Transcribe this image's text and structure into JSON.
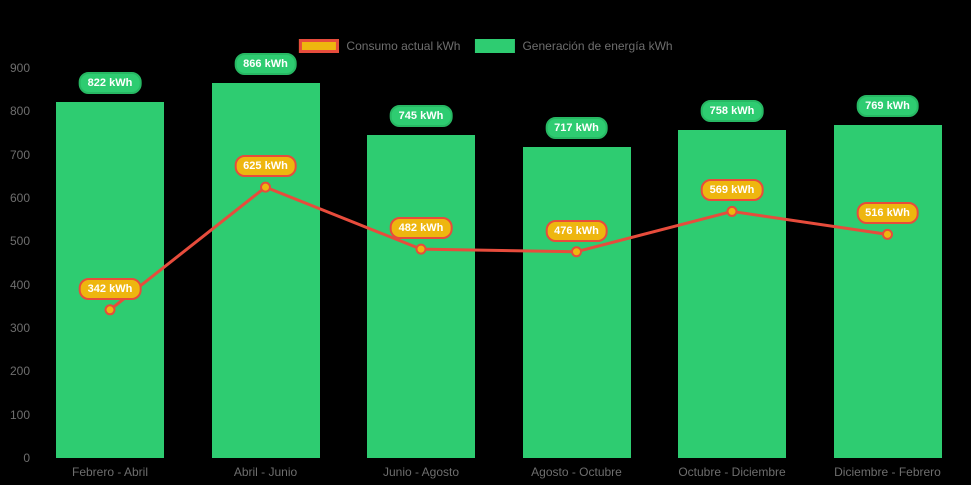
{
  "chart_data": {
    "type": "bar",
    "subtype": "bar-line-combo",
    "title": "",
    "categories": [
      "Febrero - Abril",
      "Abril - Junio",
      "Junio - Agosto",
      "Agosto - Octubre",
      "Octubre - Diciembre",
      "Diciembre - Febrero"
    ],
    "series": [
      {
        "name": "Consumo actual kWh",
        "type": "line",
        "values": [
          342,
          625,
          482,
          476,
          569,
          516
        ],
        "color": "#e74c3c",
        "point_fill": "#eeb60f",
        "label_suffix": " kWh"
      },
      {
        "name": "Generación de energía kWh",
        "type": "bar",
        "values": [
          822,
          866,
          745,
          717,
          758,
          769
        ],
        "color": "#2ecc71",
        "label_suffix": " kWh"
      }
    ],
    "ylim": [
      0,
      900
    ],
    "yticks": [
      0,
      100,
      200,
      300,
      400,
      500,
      600,
      700,
      800,
      900
    ],
    "grid": false,
    "legend_position": "top-center"
  },
  "colors": {
    "background": "#000000",
    "bar": "#2ecc71",
    "bar_badge_border": "#27b863",
    "line": "#e74c3c",
    "point_fill": "#eeb60f",
    "axis_text": "#6e6e6e",
    "badge_text": "#ffffff"
  }
}
